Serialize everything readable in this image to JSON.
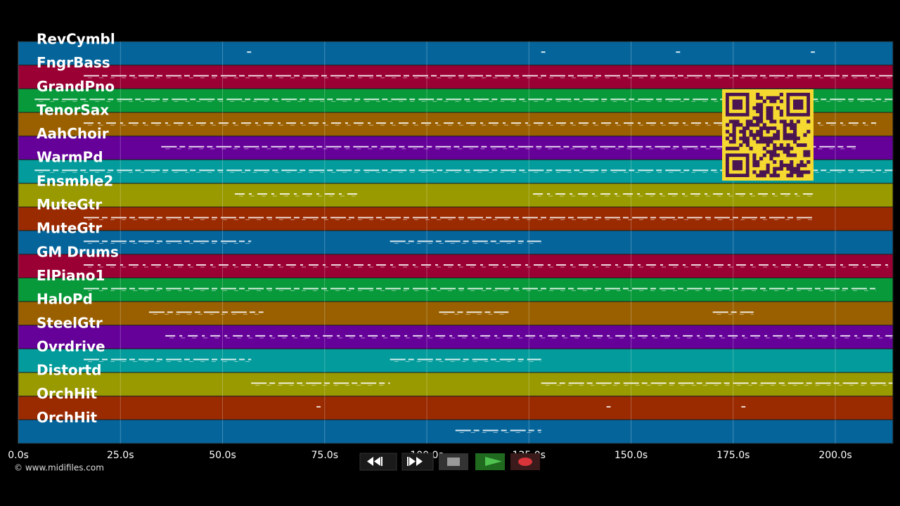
{
  "tracks": [
    {
      "name": "RevCymbl",
      "color": "#05659b"
    },
    {
      "name": "FngrBass",
      "color": "#9a0033"
    },
    {
      "name": "GrandPno",
      "color": "#07993a"
    },
    {
      "name": "TenorSax",
      "color": "#9a6000"
    },
    {
      "name": "AahChoir",
      "color": "#650099"
    },
    {
      "name": "WarmPd",
      "color": "#039b9b"
    },
    {
      "name": "Ensmble2",
      "color": "#999900"
    },
    {
      "name": "MuteGtr",
      "color": "#9a2a00"
    },
    {
      "name": "MuteGtr",
      "color": "#05659b"
    },
    {
      "name": "GM Drums",
      "color": "#9a0033"
    },
    {
      "name": "ElPiano1",
      "color": "#07993a"
    },
    {
      "name": "HaloPd",
      "color": "#9a6000"
    },
    {
      "name": "SteelGtr",
      "color": "#650099"
    },
    {
      "name": "Ovrdrive",
      "color": "#039b9b"
    },
    {
      "name": "Distortd",
      "color": "#999900"
    },
    {
      "name": "OrchHit",
      "color": "#9a2a00"
    },
    {
      "name": "OrchHit",
      "color": "#05659b"
    }
  ],
  "time_axis": {
    "ticks": [
      {
        "value": 0,
        "label": "0.0s"
      },
      {
        "value": 25,
        "label": "25.0s"
      },
      {
        "value": 50,
        "label": "50.0s"
      },
      {
        "value": 75,
        "label": "75.0s"
      },
      {
        "value": 100,
        "label": "100.0s"
      },
      {
        "value": 125,
        "label": "125.0s"
      },
      {
        "value": 150,
        "label": "150.0s"
      },
      {
        "value": 175,
        "label": "175.0s"
      },
      {
        "value": 200,
        "label": "200.0s"
      }
    ]
  },
  "copyright": "© www.midifiles.com"
}
